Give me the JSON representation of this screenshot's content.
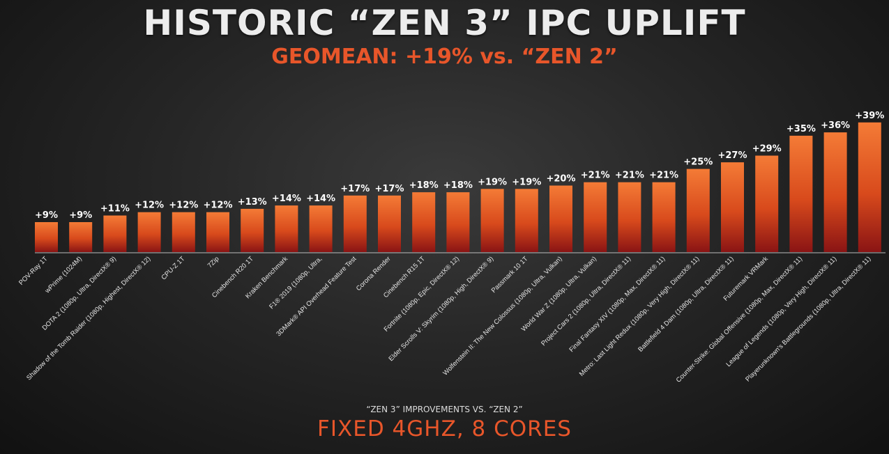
{
  "header": {
    "title": "HISTORIC “ZEN 3” IPC UPLIFT",
    "subtitle": "GEOMEAN: +19% vs. “ZEN 2”"
  },
  "footer": {
    "note": "“ZEN 3” IMPROVEMENTS VS. “ZEN 2”",
    "config": "FIXED 4GHZ, 8 CORES"
  },
  "colors": {
    "bar_top": "#f47b36",
    "bar_bottom": "#8a1414",
    "accent": "#e8562a",
    "value_label": "#ffffff",
    "axis": "#bdbdbd"
  },
  "chart_data": {
    "type": "bar",
    "title": "HISTORIC “ZEN 3” IPC UPLIFT",
    "xlabel": "",
    "ylabel": "",
    "ylim": [
      0,
      40
    ],
    "grid": false,
    "categories": [
      "POV-Ray 1T",
      "wPrime (1024M)",
      "DOTA 2 (1080p, Ultra, DirectX® 9)",
      "Shadow of the Tomb Raider (1080p, Highest, DirectX® 12)",
      "CPU-Z 1T",
      "7Zip",
      "Cinebench R20 1T",
      "Kraken Benchmark",
      "F1® 2019 (1080p, Ultra,",
      "3DMark® API Overhead Feature Test",
      "Corona Render",
      "Cinebench R15 1T",
      "Fortnite (1080p, Epic, DirectX® 12)",
      "Elder Scrolls V: Skyrim (1080p, High, DirectX® 9)",
      "Passmark 10 1T",
      "Wolfenstein II: The New Colossus (1080p, Ultra, Vulkan)",
      "World War Z (1080p, Ultra, Vulkan)",
      "Project Cars 2 (1080p, Ultra, DirectX® 11)",
      "Final Fantasy XIV (1080p, Max, DirectX® 11)",
      "Metro: Last Light Redux (1080p, Very High, DirectX® 11)",
      "Battlefield 4 Dam (1080p, Ultra, DirectX® 11)",
      "Futuremark VRMark",
      "Counter-Strike: Global Offensive (1080p, Max, DirectX® 11)",
      "League of Legends (1080p, Very High, DirectX® 11)",
      "Playerunknown's Battlegrounds (1080p, Ultra, DirectX® 11)"
    ],
    "values": [
      9,
      9,
      11,
      12,
      12,
      12,
      13,
      14,
      14,
      17,
      17,
      18,
      18,
      19,
      19,
      20,
      21,
      21,
      21,
      25,
      27,
      29,
      35,
      36,
      39
    ],
    "data_labels": [
      "+9%",
      "+9%",
      "+11%",
      "+12%",
      "+12%",
      "+12%",
      "+13%",
      "+14%",
      "+14%",
      "+17%",
      "+17%",
      "+18%",
      "+18%",
      "+19%",
      "+19%",
      "+20%",
      "+21%",
      "+21%",
      "+21%",
      "+25%",
      "+27%",
      "+29%",
      "+35%",
      "+36%",
      "+39%"
    ]
  }
}
